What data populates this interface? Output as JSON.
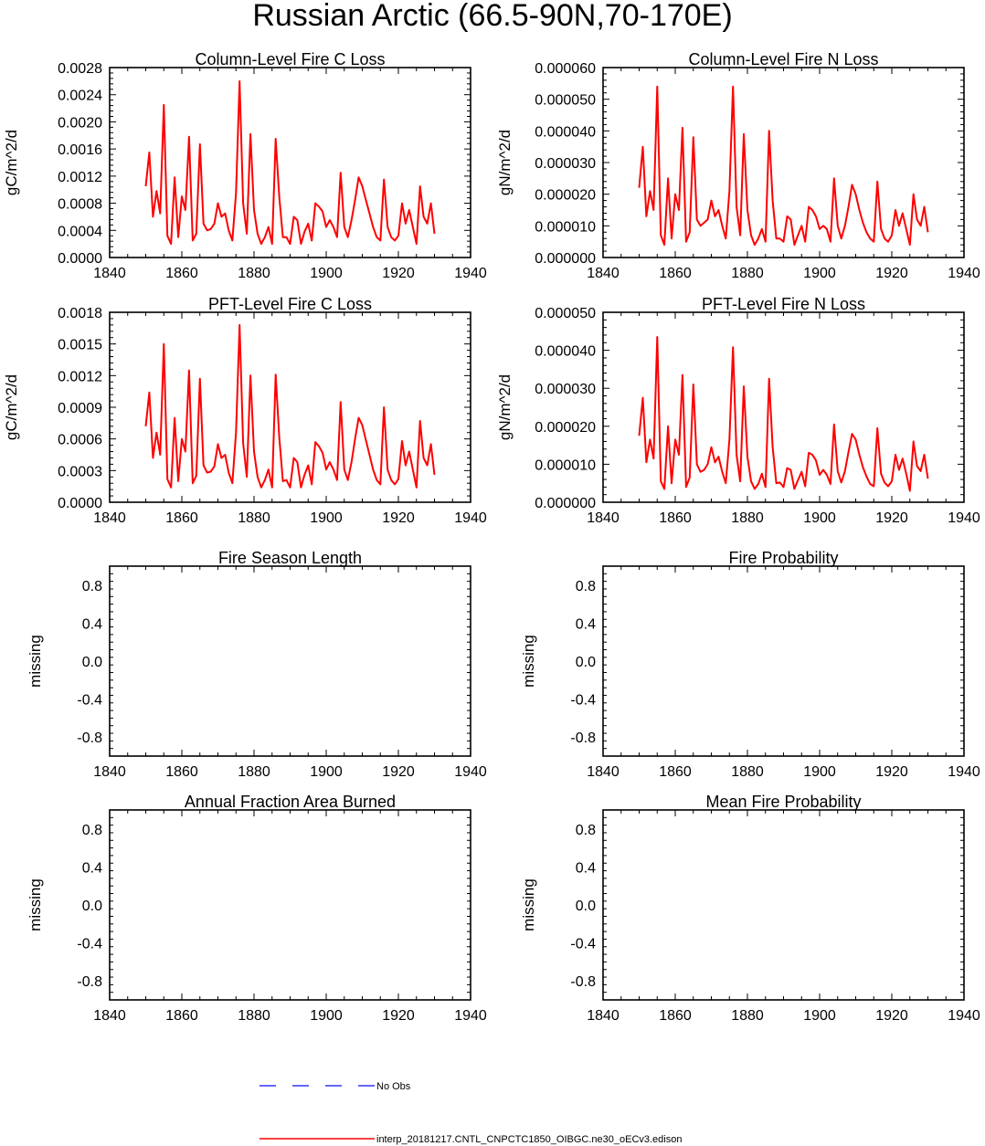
{
  "figure": {
    "title": "Russian Arctic (66.5-90N,70-170E)",
    "legend": {
      "entries": [
        {
          "label": "No Obs",
          "color": "#3333ff",
          "style": "dashed"
        },
        {
          "label": "interp_20181217.CNTL_CNPCTC1850_OIBGC.ne30_oECv3.edison",
          "color": "#ff0000",
          "style": "solid"
        }
      ]
    }
  },
  "chart_data": [
    {
      "type": "line",
      "title": "Column-Level Fire C Loss",
      "ylabel": "gC/m^2/d",
      "xlim": [
        1840,
        1940
      ],
      "xticks": [
        "1840",
        "1860",
        "1880",
        "1900",
        "1920",
        "1940"
      ],
      "ylim": [
        0,
        0.0028
      ],
      "yticks": [
        "0.0000",
        "0.0004",
        "0.0008",
        "0.0012",
        "0.0016",
        "0.0020",
        "0.0024",
        "0.0028"
      ],
      "series": [
        {
          "name": "interp_20181217.CNTL_CNPCTC1850_OIBGC.ne30_oECv3.edison",
          "color": "#ff0000",
          "x_start": 1850,
          "values": [
            0.00105,
            0.00155,
            0.0006,
            0.00098,
            0.00065,
            0.00225,
            0.00032,
            0.0002,
            0.00118,
            0.0003,
            0.0009,
            0.0007,
            0.00178,
            0.00025,
            0.00035,
            0.00167,
            0.0005,
            0.0004,
            0.00042,
            0.0005,
            0.0008,
            0.0006,
            0.00065,
            0.0004,
            0.00025,
            0.00095,
            0.0026,
            0.0008,
            0.00035,
            0.00182,
            0.0007,
            0.00035,
            0.0002,
            0.0003,
            0.00045,
            0.0002,
            0.00175,
            0.0009,
            0.0003,
            0.0003,
            0.0002,
            0.0006,
            0.00055,
            0.0002,
            0.00038,
            0.0005,
            0.00025,
            0.0008,
            0.00075,
            0.00068,
            0.00045,
            0.00055,
            0.00045,
            0.0003,
            0.00125,
            0.00045,
            0.0003,
            0.00055,
            0.00085,
            0.00118,
            0.00105,
            0.00085,
            0.00065,
            0.00045,
            0.0003,
            0.00025,
            0.00115,
            0.00045,
            0.0003,
            0.00025,
            0.00032,
            0.0008,
            0.0005,
            0.0007,
            0.00045,
            0.0002,
            0.00105,
            0.0006,
            0.0005,
            0.0008,
            0.00035
          ]
        }
      ]
    },
    {
      "type": "line",
      "title": "Column-Level Fire N Loss",
      "ylabel": "gN/m^2/d",
      "xlim": [
        1840,
        1940
      ],
      "xticks": [
        "1840",
        "1860",
        "1880",
        "1900",
        "1920",
        "1940"
      ],
      "ylim": [
        0,
        6e-05
      ],
      "yticks": [
        "0.000000",
        "0.000010",
        "0.000020",
        "0.000030",
        "0.000040",
        "0.000050",
        "0.000060"
      ],
      "series": [
        {
          "name": "interp_20181217.CNTL_CNPCTC1850_OIBGC.ne30_oECv3.edison",
          "color": "#ff0000",
          "x_start": 1850,
          "values": [
            2.2e-05,
            3.5e-05,
            1.3e-05,
            2.1e-05,
            1.5e-05,
            5.4e-05,
            7e-06,
            4e-06,
            2.5e-05,
            6e-06,
            2e-05,
            1.5e-05,
            4.1e-05,
            5e-06,
            8e-06,
            3.8e-05,
            1.2e-05,
            1e-05,
            1.1e-05,
            1.2e-05,
            1.8e-05,
            1.3e-05,
            1.5e-05,
            1e-05,
            6e-06,
            2.1e-05,
            5.4e-05,
            1.6e-05,
            7e-06,
            3.9e-05,
            1.5e-05,
            7e-06,
            4e-06,
            6e-06,
            9e-06,
            5e-06,
            4e-05,
            1.8e-05,
            6e-06,
            6e-06,
            5e-06,
            1.3e-05,
            1.2e-05,
            4e-06,
            7e-06,
            1e-05,
            5e-06,
            1.6e-05,
            1.5e-05,
            1.3e-05,
            9e-06,
            1e-05,
            9e-06,
            5e-06,
            2.5e-05,
            1e-05,
            6e-06,
            1e-05,
            1.6e-05,
            2.3e-05,
            2e-05,
            1.5e-05,
            1.1e-05,
            8e-06,
            6e-06,
            5e-06,
            2.4e-05,
            9e-06,
            6e-06,
            5e-06,
            7e-06,
            1.5e-05,
            1e-05,
            1.4e-05,
            9e-06,
            4e-06,
            2e-05,
            1.2e-05,
            1e-05,
            1.6e-05,
            8e-06
          ]
        }
      ]
    },
    {
      "type": "line",
      "title": "PFT-Level Fire C Loss",
      "ylabel": "gC/m^2/d",
      "xlim": [
        1840,
        1940
      ],
      "xticks": [
        "1840",
        "1860",
        "1880",
        "1900",
        "1920",
        "1940"
      ],
      "ylim": [
        0,
        0.0018
      ],
      "yticks": [
        "0.0000",
        "0.0003",
        "0.0006",
        "0.0009",
        "0.0012",
        "0.0015",
        "0.0018"
      ],
      "series": [
        {
          "name": "interp_20181217.CNTL_CNPCTC1850_OIBGC.ne30_oECv3.edison",
          "color": "#ff0000",
          "x_start": 1850,
          "values": [
            0.00072,
            0.00104,
            0.00042,
            0.00066,
            0.00045,
            0.0015,
            0.00022,
            0.00014,
            0.0008,
            0.0002,
            0.0006,
            0.00048,
            0.00125,
            0.00018,
            0.00025,
            0.00117,
            0.00035,
            0.00028,
            0.00029,
            0.00034,
            0.00055,
            0.00042,
            0.00045,
            0.00028,
            0.00018,
            0.00066,
            0.00168,
            0.00056,
            0.00024,
            0.0012,
            0.00048,
            0.00024,
            0.00014,
            0.00021,
            0.00031,
            0.00014,
            0.00121,
            0.00062,
            0.0002,
            0.00021,
            0.00014,
            0.00042,
            0.00038,
            0.00014,
            0.00026,
            0.00035,
            0.00017,
            0.00057,
            0.00053,
            0.00047,
            0.00031,
            0.00038,
            0.00031,
            0.00021,
            0.00095,
            0.00031,
            0.00021,
            0.00038,
            0.0006,
            0.0008,
            0.00073,
            0.00059,
            0.00045,
            0.00031,
            0.00021,
            0.00017,
            0.0009,
            0.00031,
            0.00021,
            0.00017,
            0.00022,
            0.00058,
            0.00035,
            0.00048,
            0.00031,
            0.00014,
            0.00077,
            0.00042,
            0.00035,
            0.00055,
            0.00026
          ]
        }
      ]
    },
    {
      "type": "line",
      "title": "PFT-Level Fire N Loss",
      "ylabel": "gN/m^2/d",
      "xlim": [
        1840,
        1940
      ],
      "xticks": [
        "1840",
        "1860",
        "1880",
        "1900",
        "1920",
        "1940"
      ],
      "ylim": [
        0,
        5e-05
      ],
      "yticks": [
        "0.000000",
        "0.000010",
        "0.000020",
        "0.000030",
        "0.000040",
        "0.000050"
      ],
      "series": [
        {
          "name": "interp_20181217.CNTL_CNPCTC1850_OIBGC.ne30_oECv3.edison",
          "color": "#ff0000",
          "x_start": 1850,
          "values": [
            1.75e-05,
            2.75e-05,
            1.05e-05,
            1.65e-05,
            1.15e-05,
            4.35e-05,
            5.5e-06,
            3.5e-06,
            2e-05,
            5e-06,
            1.65e-05,
            1.25e-05,
            3.35e-05,
            4e-06,
            6.5e-06,
            3.1e-05,
            1e-05,
            8e-06,
            8.5e-06,
            1e-05,
            1.45e-05,
            1.05e-05,
            1.2e-05,
            8e-06,
            5e-06,
            1.65e-05,
            4.08e-05,
            1.25e-05,
            5.5e-06,
            3.05e-05,
            1.2e-05,
            5.5e-06,
            3.5e-06,
            4.8e-06,
            7.5e-06,
            4e-06,
            3.25e-05,
            1.45e-05,
            5e-06,
            5.2e-06,
            4e-06,
            9e-06,
            8.5e-06,
            3.5e-06,
            5.8e-06,
            8e-06,
            4.2e-06,
            1.3e-05,
            1.25e-05,
            1.1e-05,
            7.2e-06,
            8.5e-06,
            7.2e-06,
            4.8e-06,
            2.05e-05,
            8.2e-06,
            5.2e-06,
            8.2e-06,
            1.32e-05,
            1.8e-05,
            1.65e-05,
            1.25e-05,
            9.2e-06,
            6.8e-06,
            4.8e-06,
            4.2e-06,
            1.95e-05,
            7.5e-06,
            5.2e-06,
            4.2e-06,
            5.5e-06,
            1.25e-05,
            8.5e-06,
            1.15e-05,
            7.5e-06,
            3e-06,
            1.6e-05,
            9.5e-06,
            8.2e-06,
            1.25e-05,
            6.2e-06
          ]
        }
      ]
    },
    {
      "type": "line",
      "title": "Fire Season Length",
      "ylabel": "missing",
      "xlim": [
        1840,
        1940
      ],
      "xticks": [
        "1840",
        "1860",
        "1880",
        "1900",
        "1920",
        "1940"
      ],
      "ylim": [
        -1,
        1
      ],
      "yticks": [
        "-0.8",
        "-0.4",
        "0.0",
        "0.4",
        "0.8"
      ],
      "series": []
    },
    {
      "type": "line",
      "title": "Fire Probability",
      "ylabel": "missing",
      "xlim": [
        1840,
        1940
      ],
      "xticks": [
        "1840",
        "1860",
        "1880",
        "1900",
        "1920",
        "1940"
      ],
      "ylim": [
        -1,
        1
      ],
      "yticks": [
        "-0.8",
        "-0.4",
        "0.0",
        "0.4",
        "0.8"
      ],
      "series": []
    },
    {
      "type": "line",
      "title": "Annual Fraction Area Burned",
      "ylabel": "missing",
      "xlim": [
        1840,
        1940
      ],
      "xticks": [
        "1840",
        "1860",
        "1880",
        "1900",
        "1920",
        "1940"
      ],
      "ylim": [
        -1,
        1
      ],
      "yticks": [
        "-0.8",
        "-0.4",
        "0.0",
        "0.4",
        "0.8"
      ],
      "series": []
    },
    {
      "type": "line",
      "title": "Mean Fire Probability",
      "ylabel": "missing",
      "xlim": [
        1840,
        1940
      ],
      "xticks": [
        "1840",
        "1860",
        "1880",
        "1900",
        "1920",
        "1940"
      ],
      "ylim": [
        -1,
        1
      ],
      "yticks": [
        "-0.8",
        "-0.4",
        "0.0",
        "0.4",
        "0.8"
      ],
      "series": []
    }
  ]
}
